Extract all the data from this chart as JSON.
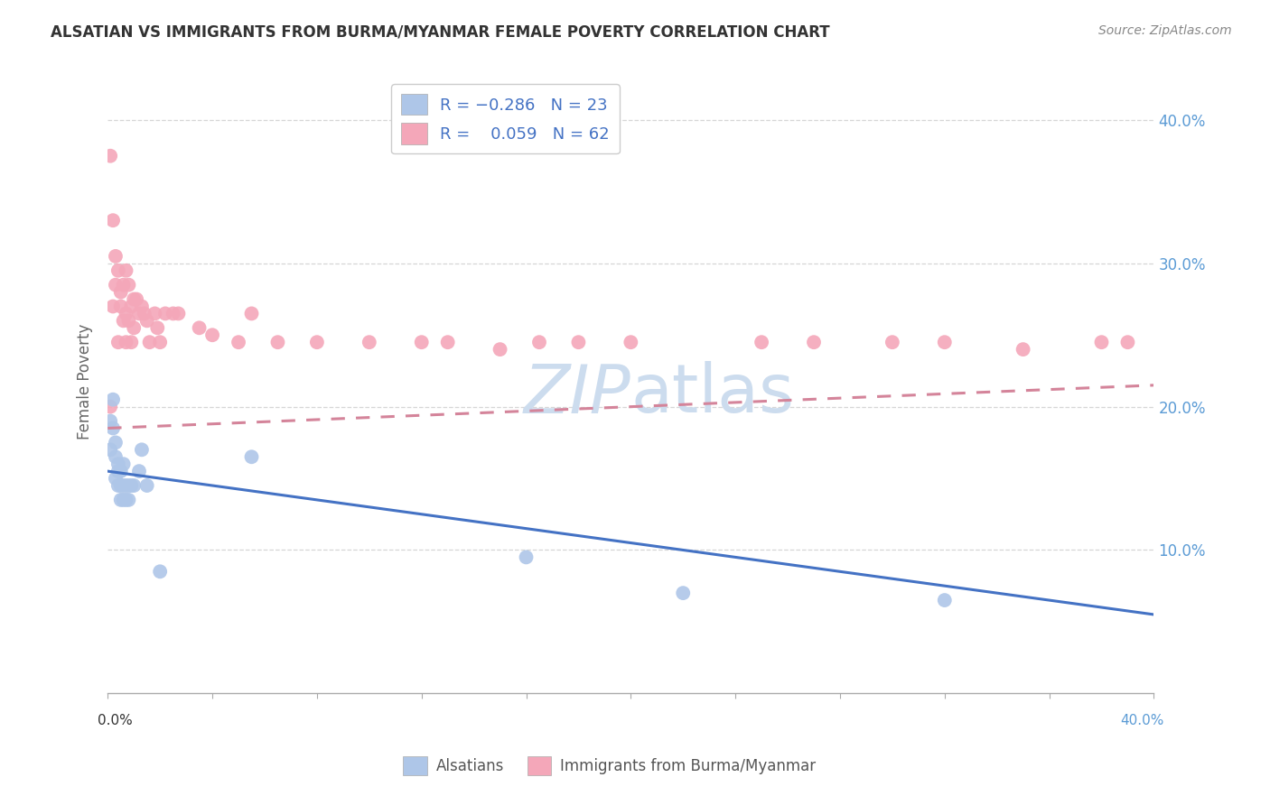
{
  "title": "ALSATIAN VS IMMIGRANTS FROM BURMA/MYANMAR FEMALE POVERTY CORRELATION CHART",
  "source": "Source: ZipAtlas.com",
  "ylabel": "Female Poverty",
  "xlim": [
    0.0,
    0.4
  ],
  "ylim": [
    0.0,
    0.435
  ],
  "alsatian_color": "#aec6e8",
  "burma_color": "#f4a7b9",
  "line_alsatian_color": "#4472c4",
  "line_burma_color": "#d4849a",
  "watermark_color": "#ccdcee",
  "background_color": "#ffffff",
  "grid_color": "#cccccc",
  "alsatian_x": [
    0.001,
    0.001,
    0.002,
    0.002,
    0.003,
    0.003,
    0.003,
    0.004,
    0.004,
    0.004,
    0.005,
    0.005,
    0.005,
    0.006,
    0.006,
    0.006,
    0.007,
    0.007,
    0.008,
    0.008,
    0.009,
    0.01,
    0.012,
    0.013,
    0.015,
    0.02,
    0.055,
    0.16,
    0.22,
    0.32
  ],
  "alsatian_y": [
    0.19,
    0.17,
    0.205,
    0.185,
    0.175,
    0.165,
    0.15,
    0.16,
    0.155,
    0.145,
    0.155,
    0.145,
    0.135,
    0.16,
    0.145,
    0.135,
    0.145,
    0.135,
    0.145,
    0.135,
    0.145,
    0.145,
    0.155,
    0.17,
    0.145,
    0.085,
    0.165,
    0.095,
    0.07,
    0.065
  ],
  "burma_x": [
    0.001,
    0.001,
    0.002,
    0.002,
    0.003,
    0.003,
    0.004,
    0.004,
    0.005,
    0.005,
    0.006,
    0.006,
    0.007,
    0.007,
    0.007,
    0.008,
    0.008,
    0.009,
    0.009,
    0.01,
    0.01,
    0.011,
    0.012,
    0.013,
    0.014,
    0.015,
    0.016,
    0.018,
    0.019,
    0.02,
    0.022,
    0.025,
    0.027,
    0.035,
    0.04,
    0.05,
    0.055,
    0.065,
    0.08,
    0.1,
    0.12,
    0.13,
    0.15,
    0.165,
    0.18,
    0.2,
    0.25,
    0.27,
    0.3,
    0.32,
    0.35,
    0.38,
    0.39
  ],
  "burma_y": [
    0.375,
    0.2,
    0.33,
    0.27,
    0.305,
    0.285,
    0.295,
    0.245,
    0.28,
    0.27,
    0.285,
    0.26,
    0.295,
    0.265,
    0.245,
    0.285,
    0.26,
    0.27,
    0.245,
    0.275,
    0.255,
    0.275,
    0.265,
    0.27,
    0.265,
    0.26,
    0.245,
    0.265,
    0.255,
    0.245,
    0.265,
    0.265,
    0.265,
    0.255,
    0.25,
    0.245,
    0.265,
    0.245,
    0.245,
    0.245,
    0.245,
    0.245,
    0.24,
    0.245,
    0.245,
    0.245,
    0.245,
    0.245,
    0.245,
    0.245,
    0.24,
    0.245,
    0.245
  ],
  "label_alsatians": "Alsatians",
  "label_burma": "Immigrants from Burma/Myanmar",
  "alsatian_line_x0": 0.0,
  "alsatian_line_y0": 0.155,
  "alsatian_line_x1": 0.4,
  "alsatian_line_y1": 0.055,
  "burma_line_x0": 0.0,
  "burma_line_y0": 0.185,
  "burma_line_x1": 0.4,
  "burma_line_y1": 0.215
}
